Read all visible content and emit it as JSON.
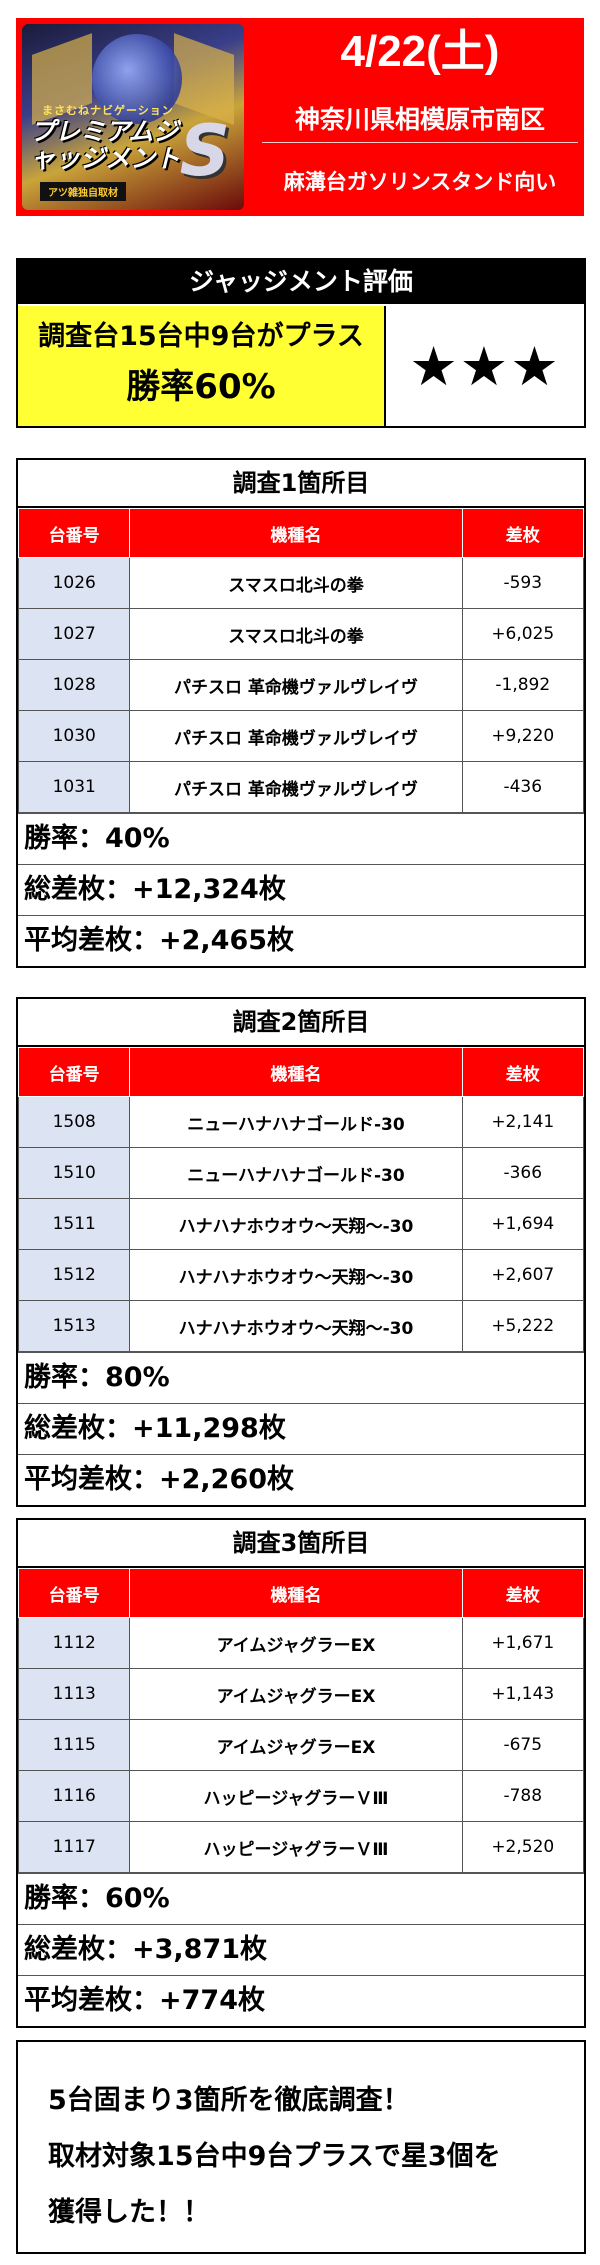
{
  "header": {
    "logo": {
      "small_text": "まさむねナビゲーション",
      "big_text": "プレミアムジャッジメント",
      "s_letter": "S",
      "ribbon": "アツ雑独自取材"
    },
    "date": "4/22(土)",
    "place": "神奈川県相模原市南区",
    "detail": "麻溝台ガソリンスタンド向い"
  },
  "judgement": {
    "title": "ジャッジメント評価",
    "line1": "調査台15台中9台がプラス",
    "line2": "勝率60%",
    "stars": "★★★"
  },
  "columns": {
    "no": "台番号",
    "model": "機種名",
    "diff": "差枚"
  },
  "surveys": [
    {
      "title": "調査1箇所目",
      "rows": [
        {
          "no": "1026",
          "model": "スマスロ北斗の拳",
          "diff": "-593"
        },
        {
          "no": "1027",
          "model": "スマスロ北斗の拳",
          "diff": "+6,025"
        },
        {
          "no": "1028",
          "model": "パチスロ 革命機ヴァルヴレイヴ",
          "diff": "-1,892"
        },
        {
          "no": "1030",
          "model": "パチスロ 革命機ヴァルヴレイヴ",
          "diff": "+9,220"
        },
        {
          "no": "1031",
          "model": "パチスロ 革命機ヴァルヴレイヴ",
          "diff": "-436"
        }
      ],
      "win_rate": "勝率：40%",
      "total": "総差枚：+12,324枚",
      "average": "平均差枚：+2,465枚"
    },
    {
      "title": "調査2箇所目",
      "rows": [
        {
          "no": "1508",
          "model": "ニューハナハナゴールド‐30",
          "diff": "+2,141"
        },
        {
          "no": "1510",
          "model": "ニューハナハナゴールド‐30",
          "diff": "-366"
        },
        {
          "no": "1511",
          "model": "ハナハナホウオウ～天翔～‐30",
          "diff": "+1,694"
        },
        {
          "no": "1512",
          "model": "ハナハナホウオウ～天翔～‐30",
          "diff": "+2,607"
        },
        {
          "no": "1513",
          "model": "ハナハナホウオウ～天翔～‐30",
          "diff": "+5,222"
        }
      ],
      "win_rate": "勝率：80%",
      "total": "総差枚：+11,298枚",
      "average": "平均差枚：+2,260枚"
    },
    {
      "title": "調査3箇所目",
      "rows": [
        {
          "no": "1112",
          "model": "アイムジャグラーEX",
          "diff": "+1,671"
        },
        {
          "no": "1113",
          "model": "アイムジャグラーEX",
          "diff": "+1,143"
        },
        {
          "no": "1115",
          "model": "アイムジャグラーEX",
          "diff": "-675"
        },
        {
          "no": "1116",
          "model": "ハッピージャグラーＶⅢ",
          "diff": "-788"
        },
        {
          "no": "1117",
          "model": "ハッピージャグラーＶⅢ",
          "diff": "+2,520"
        }
      ],
      "win_rate": "勝率：60%",
      "total": "総差枚：+3,871枚",
      "average": "平均差枚：+774枚"
    }
  ],
  "footer": {
    "line1": "5台固まり3箇所を徹底調査！",
    "line2": "取材対象15台中9台プラスで星3個を",
    "line3": "獲得した！！"
  },
  "colors": {
    "header_red": "#ff0000",
    "table_header_red": "#ff0000",
    "judgement_yellow": "#ffff33",
    "machine_number_bg": "#dce3f2"
  }
}
